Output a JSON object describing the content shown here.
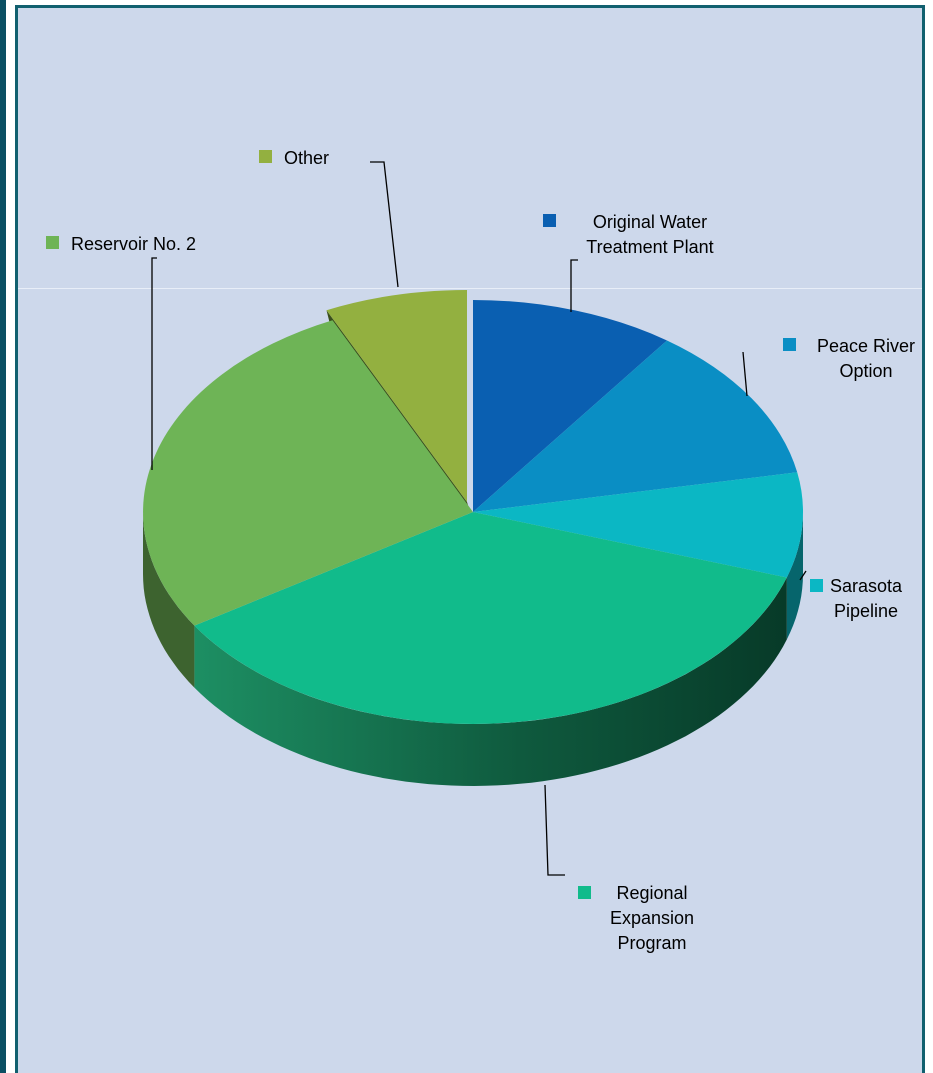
{
  "chart_data": {
    "type": "pie",
    "title": "",
    "labels": [
      "Original Water Treatment Plant",
      "Peace River Option",
      "Sarasota Pipeline",
      "Regional Expansion Program",
      "Reservoir No. 2",
      "Other"
    ],
    "values": [
      10,
      12,
      8,
      36,
      27,
      7
    ],
    "exploded": [
      "Other"
    ],
    "legend_placement": "labels beside slices with leader lines",
    "colors": [
      "#0a5fb1",
      "#0a8ec4",
      "#0bb7c4",
      "#11bb8b",
      "#6eb456",
      "#93b040"
    ],
    "label_lines": [
      [
        "Original Water",
        "Treatment Plant"
      ],
      [
        "Peace River",
        "Option"
      ],
      [
        "Sarasota",
        "Pipeline"
      ],
      [
        "Regional",
        "Expansion",
        "Program"
      ],
      [
        "Reservoir No. 2"
      ],
      [
        "Other"
      ]
    ]
  }
}
